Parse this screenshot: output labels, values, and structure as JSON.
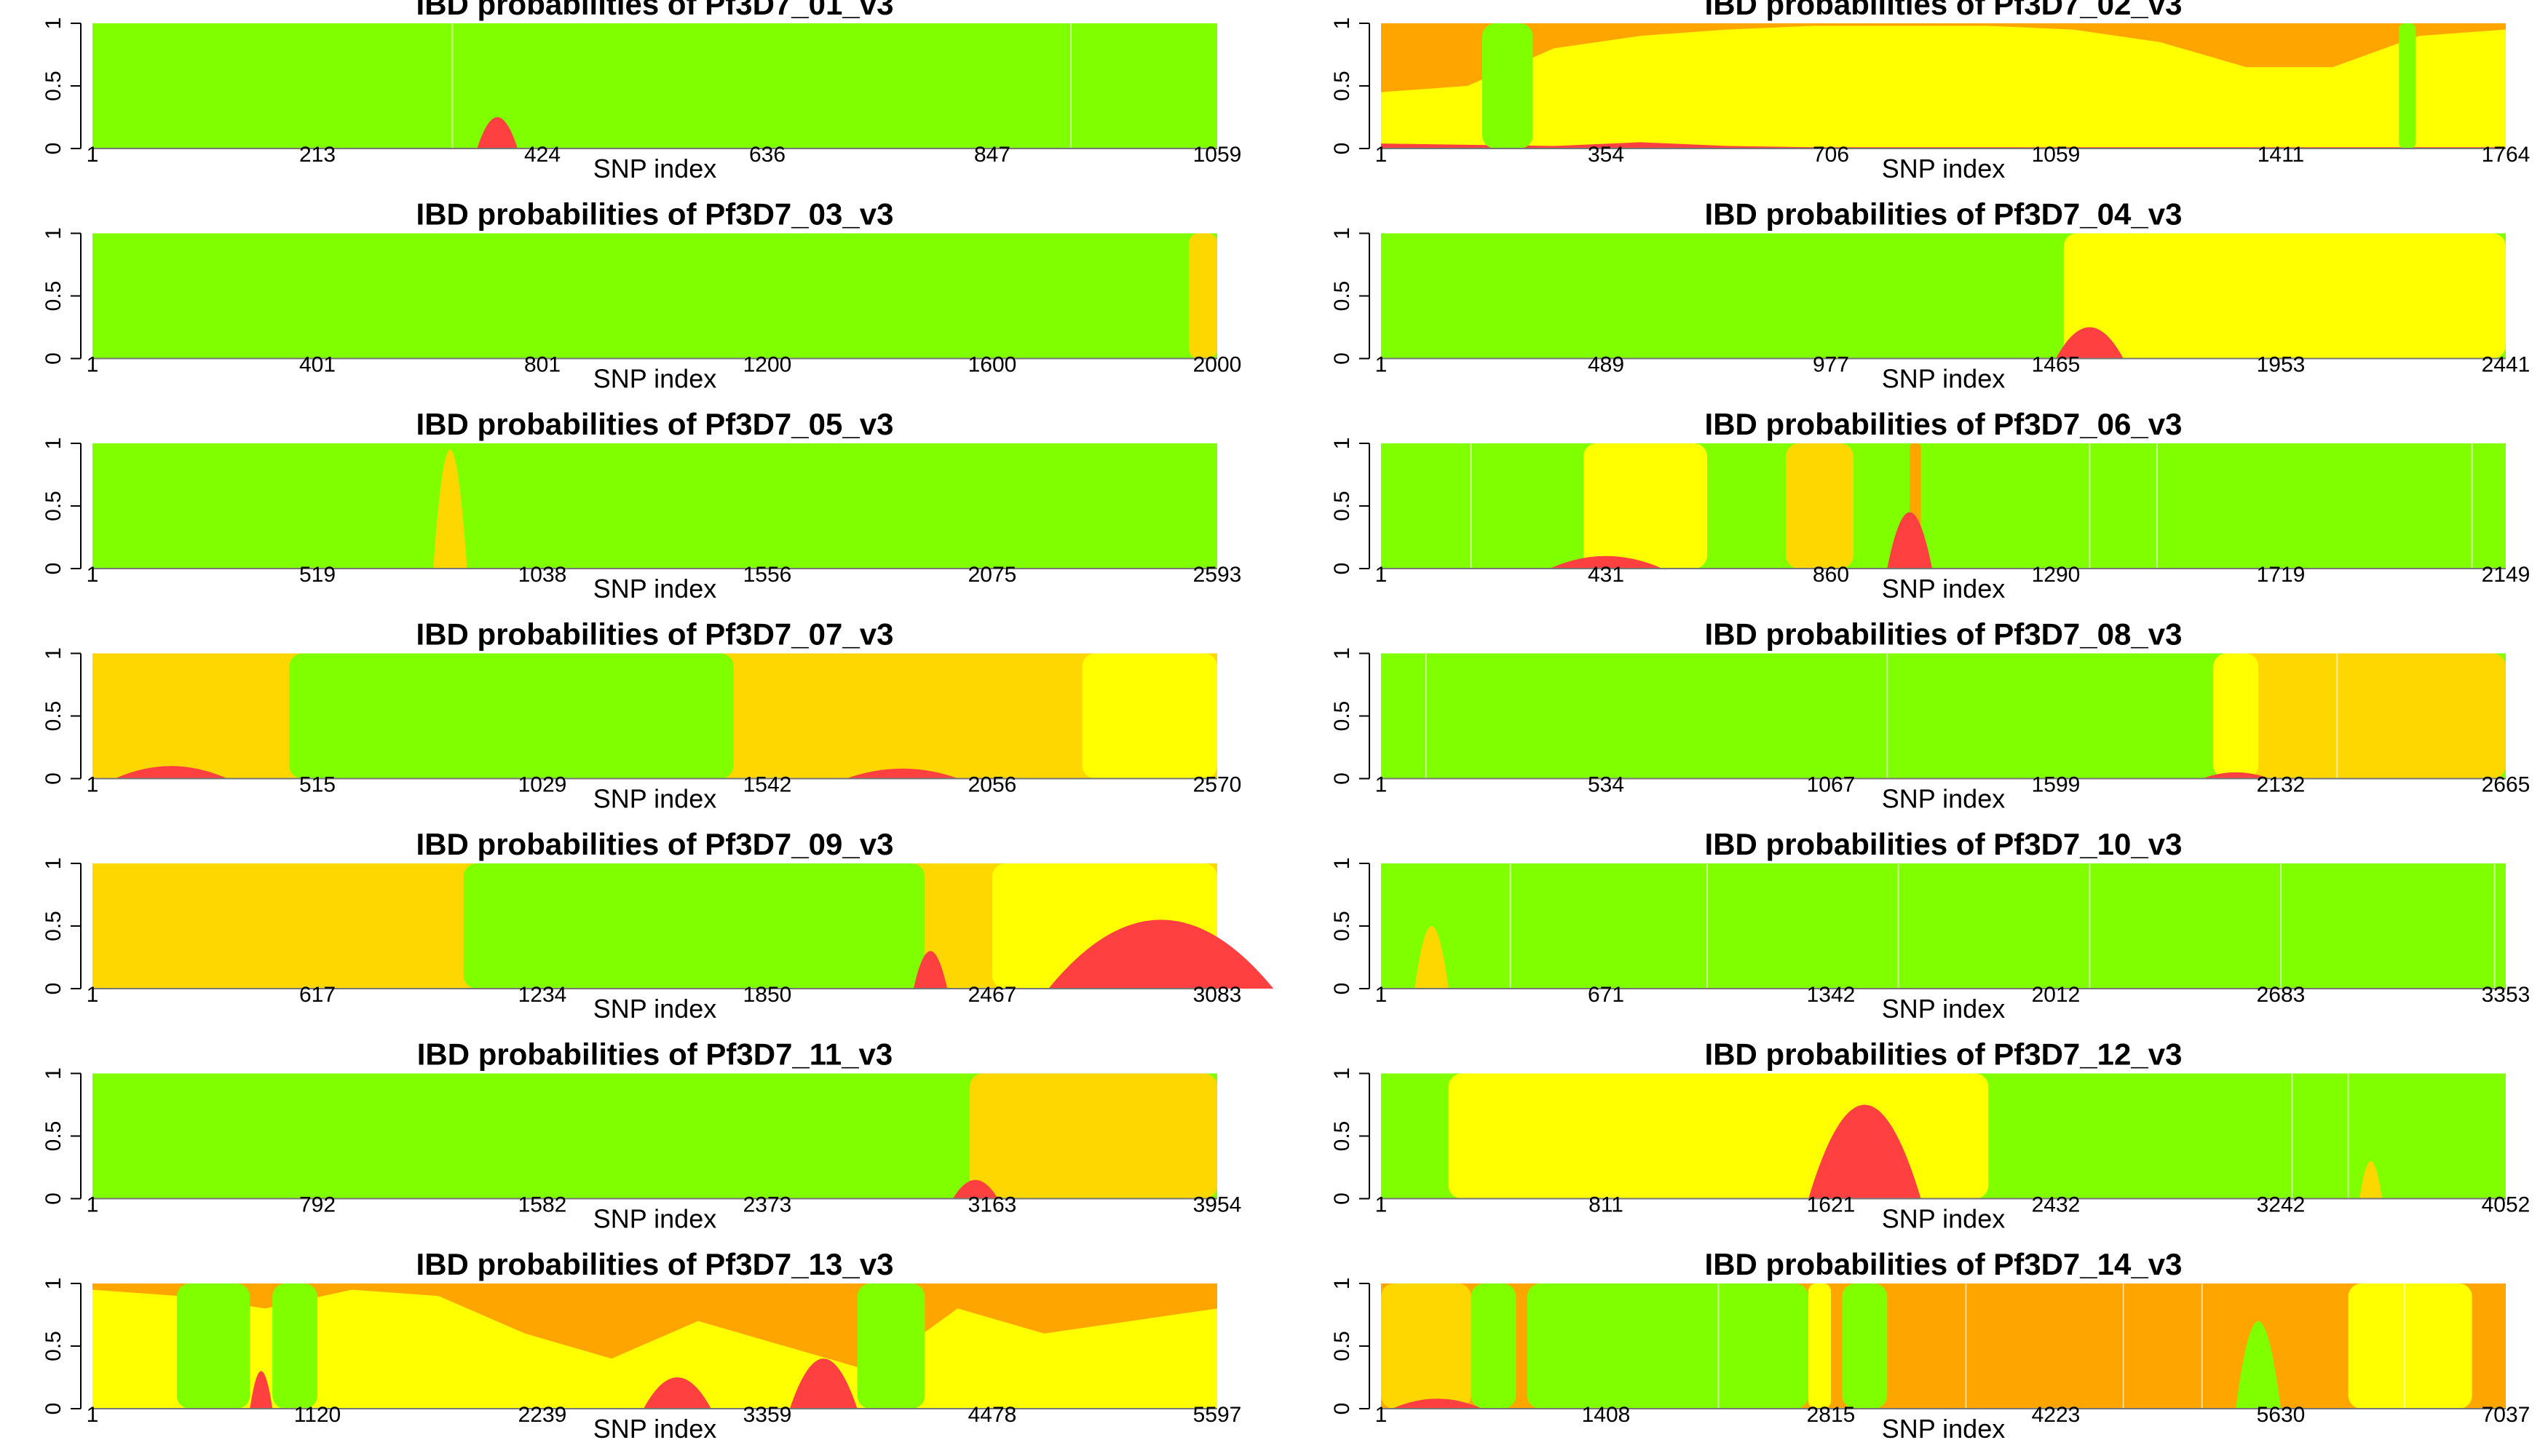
{
  "colors": {
    "green": "#7FFF00",
    "gold": "#FFD700",
    "orange": "#FFA500",
    "yellow": "#FFFF00",
    "red": "#FF4040"
  },
  "chart_data": [
    {
      "type": "area",
      "title": "IBD probabilities of Pf3D7_01_v3",
      "xlabel": "SNP index",
      "ylabel": "",
      "xlim": [
        1,
        1059
      ],
      "ylim": [
        0,
        1
      ],
      "yticks": [
        "0",
        "0.5",
        "1"
      ],
      "xticks": [
        "1",
        "213",
        "424",
        "636",
        "847",
        "1059"
      ],
      "background": "green",
      "blips": [
        [
          0.36,
          0.018,
          0.25,
          "red"
        ]
      ],
      "stripes": [
        0.32,
        0.87
      ]
    },
    {
      "type": "area",
      "title": "IBD probabilities of Pf3D7_02_v3",
      "xlabel": "SNP index",
      "ylabel": "",
      "xlim": [
        1,
        1764
      ],
      "ylim": [
        0,
        1
      ],
      "yticks": [
        "0",
        "0.5",
        "1"
      ],
      "xticks": [
        "1",
        "354",
        "706",
        "1059",
        "1411",
        "1764"
      ],
      "background": "yellow",
      "top_band": {
        "color": "orange",
        "level": [
          0.55,
          0.5,
          0.2,
          0.1,
          0.05,
          0.02,
          0.02,
          0.02,
          0.05,
          0.15,
          0.35,
          0.35,
          0.1,
          0.05
        ]
      },
      "bottom_band": {
        "color": "red",
        "level": [
          0.04,
          0.03,
          0.02,
          0.05,
          0.02,
          0.01,
          0.01,
          0.01,
          0.01,
          0.01,
          0.01,
          0.01,
          0.01,
          0.01
        ]
      },
      "blocks": [
        [
          0.09,
          0.135,
          "green"
        ],
        [
          0.905,
          0.92,
          "green"
        ]
      ]
    },
    {
      "type": "area",
      "title": "IBD probabilities of Pf3D7_03_v3",
      "xlabel": "SNP index",
      "ylabel": "",
      "xlim": [
        1,
        2000
      ],
      "ylim": [
        0,
        1
      ],
      "yticks": [
        "0",
        "0.5",
        "1"
      ],
      "xticks": [
        "1",
        "401",
        "801",
        "1200",
        "1600",
        "2000"
      ],
      "background": "green",
      "blocks": [
        [
          0.975,
          1.0,
          "gold"
        ]
      ]
    },
    {
      "type": "area",
      "title": "IBD probabilities of Pf3D7_04_v3",
      "xlabel": "SNP index",
      "ylabel": "",
      "xlim": [
        1,
        2441
      ],
      "ylim": [
        0,
        1
      ],
      "yticks": [
        "0",
        "0.5",
        "1"
      ],
      "xticks": [
        "1",
        "489",
        "977",
        "1465",
        "1953",
        "2441"
      ],
      "background": "green",
      "blocks": [
        [
          0.607,
          1.0,
          "yellow"
        ]
      ],
      "blips": [
        [
          0.63,
          0.03,
          0.25,
          "red"
        ]
      ]
    },
    {
      "type": "area",
      "title": "IBD probabilities of Pf3D7_05_v3",
      "xlabel": "SNP index",
      "ylabel": "",
      "xlim": [
        1,
        2593
      ],
      "ylim": [
        0,
        1
      ],
      "yticks": [
        "0",
        "0.5",
        "1"
      ],
      "xticks": [
        "1",
        "519",
        "1038",
        "1556",
        "2075",
        "2593"
      ],
      "background": "green",
      "blips": [
        [
          0.318,
          0.015,
          0.95,
          "gold"
        ]
      ]
    },
    {
      "type": "area",
      "title": "IBD probabilities of Pf3D7_06_v3",
      "xlabel": "SNP index",
      "ylabel": "",
      "xlim": [
        1,
        2149
      ],
      "ylim": [
        0,
        1
      ],
      "yticks": [
        "0",
        "0.5",
        "1"
      ],
      "xticks": [
        "1",
        "431",
        "860",
        "1290",
        "1719",
        "2149"
      ],
      "background": "green",
      "blocks": [
        [
          0.18,
          0.29,
          "yellow"
        ],
        [
          0.36,
          0.42,
          "gold"
        ],
        [
          0.47,
          0.48,
          "orange"
        ]
      ],
      "blips": [
        [
          0.47,
          0.02,
          0.45,
          "red"
        ],
        [
          0.2,
          0.05,
          0.1,
          "red"
        ]
      ],
      "stripes": [
        0.08,
        0.63,
        0.69,
        0.97
      ]
    },
    {
      "type": "area",
      "title": "IBD probabilities of Pf3D7_07_v3",
      "xlabel": "SNP index",
      "ylabel": "",
      "xlim": [
        1,
        2570
      ],
      "ylim": [
        0,
        1
      ],
      "yticks": [
        "0",
        "0.5",
        "1"
      ],
      "xticks": [
        "1",
        "515",
        "1029",
        "1542",
        "2056",
        "2570"
      ],
      "background": "gold",
      "blocks": [
        [
          0.175,
          0.57,
          "green"
        ],
        [
          0.88,
          1.0,
          "yellow"
        ]
      ],
      "blips": [
        [
          0.07,
          0.05,
          0.1,
          "red"
        ],
        [
          0.72,
          0.05,
          0.08,
          "red"
        ]
      ]
    },
    {
      "type": "area",
      "title": "IBD probabilities of Pf3D7_08_v3",
      "xlabel": "SNP index",
      "ylabel": "",
      "xlim": [
        1,
        2665
      ],
      "ylim": [
        0,
        1
      ],
      "yticks": [
        "0",
        "0.5",
        "1"
      ],
      "xticks": [
        "1",
        "534",
        "1067",
        "1599",
        "2132",
        "2665"
      ],
      "background": "green",
      "blocks": [
        [
          0.74,
          1.0,
          "gold"
        ],
        [
          0.74,
          0.78,
          "yellow"
        ]
      ],
      "blips": [
        [
          0.76,
          0.03,
          0.05,
          "red"
        ]
      ],
      "stripes": [
        0.04,
        0.45,
        0.85
      ]
    },
    {
      "type": "area",
      "title": "IBD probabilities of Pf3D7_09_v3",
      "xlabel": "SNP index",
      "ylabel": "",
      "xlim": [
        1,
        3083
      ],
      "ylim": [
        0,
        1
      ],
      "yticks": [
        "0",
        "0.5",
        "1"
      ],
      "xticks": [
        "1",
        "617",
        "1234",
        "1850",
        "2467",
        "3083"
      ],
      "background": "gold",
      "blocks": [
        [
          0.33,
          0.74,
          "green"
        ],
        [
          0.8,
          1.0,
          "yellow"
        ]
      ],
      "blips": [
        [
          0.745,
          0.015,
          0.3,
          "red"
        ],
        [
          0.95,
          0.1,
          0.55,
          "red"
        ]
      ]
    },
    {
      "type": "area",
      "title": "IBD probabilities of Pf3D7_10_v3",
      "xlabel": "SNP index",
      "ylabel": "",
      "xlim": [
        1,
        3353
      ],
      "ylim": [
        0,
        1
      ],
      "yticks": [
        "0",
        "0.5",
        "1"
      ],
      "xticks": [
        "1",
        "671",
        "1342",
        "2012",
        "2683",
        "3353"
      ],
      "background": "green",
      "blips": [
        [
          0.045,
          0.015,
          0.5,
          "gold"
        ]
      ],
      "stripes": [
        0.115,
        0.29,
        0.46,
        0.63,
        0.8,
        0.99
      ]
    },
    {
      "type": "area",
      "title": "IBD probabilities of Pf3D7_11_v3",
      "xlabel": "SNP index",
      "ylabel": "",
      "xlim": [
        1,
        3954
      ],
      "ylim": [
        0,
        1
      ],
      "yticks": [
        "0",
        "0.5",
        "1"
      ],
      "xticks": [
        "1",
        "792",
        "1582",
        "2373",
        "3163",
        "3954"
      ],
      "background": "green",
      "blocks": [
        [
          0.78,
          1.0,
          "gold"
        ]
      ],
      "blips": [
        [
          0.785,
          0.02,
          0.15,
          "red"
        ]
      ]
    },
    {
      "type": "area",
      "title": "IBD probabilities of Pf3D7_12_v3",
      "xlabel": "SNP index",
      "ylabel": "",
      "xlim": [
        1,
        4052
      ],
      "ylim": [
        0,
        1
      ],
      "yticks": [
        "0",
        "0.5",
        "1"
      ],
      "xticks": [
        "1",
        "811",
        "1621",
        "2432",
        "3242",
        "4052"
      ],
      "background": "green",
      "blocks": [
        [
          0.06,
          0.54,
          "yellow"
        ]
      ],
      "blips": [
        [
          0.43,
          0.05,
          0.75,
          "red"
        ],
        [
          0.88,
          0.01,
          0.3,
          "gold"
        ]
      ],
      "stripes": [
        0.81,
        0.86
      ]
    },
    {
      "type": "area",
      "title": "IBD probabilities of Pf3D7_13_v3",
      "xlabel": "SNP index",
      "ylabel": "",
      "xlim": [
        1,
        5597
      ],
      "ylim": [
        0,
        1
      ],
      "yticks": [
        "0",
        "0.5",
        "1"
      ],
      "xticks": [
        "1",
        "1120",
        "2239",
        "3359",
        "4478",
        "5597"
      ],
      "background": "yellow",
      "top_band": {
        "color": "orange",
        "level": [
          0.05,
          0.1,
          0.2,
          0.05,
          0.1,
          0.4,
          0.6,
          0.3,
          0.5,
          0.7,
          0.2,
          0.4,
          0.3,
          0.2
        ]
      },
      "blocks": [
        [
          0.075,
          0.14,
          "green"
        ],
        [
          0.16,
          0.2,
          "green"
        ],
        [
          0.68,
          0.74,
          "green"
        ]
      ],
      "blips": [
        [
          0.15,
          0.01,
          0.3,
          "red"
        ],
        [
          0.65,
          0.03,
          0.4,
          "red"
        ],
        [
          0.52,
          0.03,
          0.25,
          "red"
        ]
      ]
    },
    {
      "type": "area",
      "title": "IBD probabilities of Pf3D7_14_v3",
      "xlabel": "SNP index",
      "ylabel": "",
      "xlim": [
        1,
        7037
      ],
      "ylim": [
        0,
        1
      ],
      "yticks": [
        "0",
        "0.5",
        "1"
      ],
      "xticks": [
        "1",
        "1408",
        "2815",
        "4223",
        "5630",
        "7037"
      ],
      "background": "orange",
      "blocks": [
        [
          0.0,
          0.08,
          "gold"
        ],
        [
          0.08,
          0.12,
          "green"
        ],
        [
          0.13,
          0.38,
          "green"
        ],
        [
          0.38,
          0.4,
          "yellow"
        ],
        [
          0.41,
          0.45,
          "green"
        ],
        [
          0.86,
          0.97,
          "yellow"
        ]
      ],
      "blips": [
        [
          0.78,
          0.02,
          0.7,
          "green"
        ],
        [
          0.05,
          0.04,
          0.08,
          "red"
        ]
      ],
      "stripes": [
        0.3,
        0.52,
        0.66,
        0.73,
        0.91
      ]
    }
  ]
}
